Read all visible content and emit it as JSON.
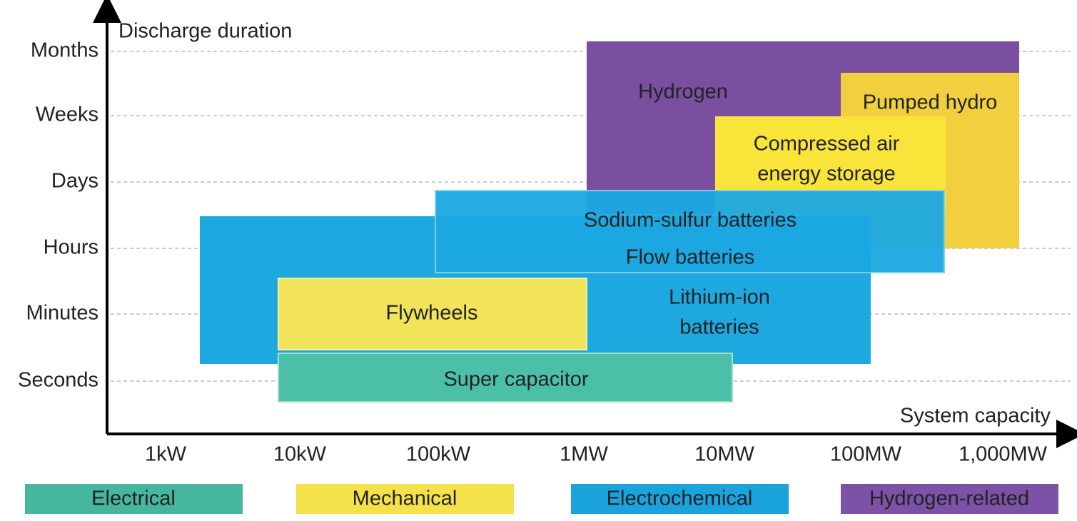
{
  "axes": {
    "y_title": "Discharge duration",
    "x_title": "System capacity",
    "y_labels": [
      "Months",
      "Weeks",
      "Days",
      "Hours",
      "Minutes",
      "Seconds"
    ],
    "x_labels": [
      "1kW",
      "10kW",
      "100kW",
      "1MW",
      "10MW",
      "100MW",
      "1,000MW"
    ]
  },
  "regions": [
    {
      "lines": [
        "Hydrogen"
      ]
    },
    {
      "lines": [
        "Pumped hydro"
      ]
    },
    {
      "lines": [
        "Compressed air",
        "energy storage"
      ]
    },
    {
      "lines": [
        "Lithium-ion",
        "batteries"
      ]
    },
    {
      "lines": [
        "Sodium-sulfur batteries"
      ]
    },
    {
      "lines": [
        "Flow batteries"
      ]
    },
    {
      "lines": [
        "Flywheels"
      ]
    },
    {
      "lines": [
        "Super capacitor"
      ]
    }
  ],
  "legend": [
    "Electrical",
    "Mechanical",
    "Electrochemical",
    "Hydrogen-related"
  ]
}
